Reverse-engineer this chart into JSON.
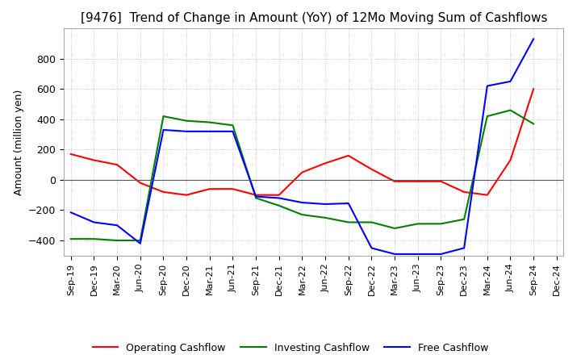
{
  "title": "[9476]  Trend of Change in Amount (YoY) of 12Mo Moving Sum of Cashflows",
  "ylabel": "Amount (million yen)",
  "ylim": [
    -500,
    1000
  ],
  "yticks": [
    -400,
    -200,
    0,
    200,
    400,
    600,
    800
  ],
  "x_labels": [
    "Sep-19",
    "Dec-19",
    "Mar-20",
    "Jun-20",
    "Sep-20",
    "Dec-20",
    "Mar-21",
    "Jun-21",
    "Sep-21",
    "Dec-21",
    "Mar-22",
    "Jun-22",
    "Sep-22",
    "Dec-22",
    "Mar-23",
    "Jun-23",
    "Sep-23",
    "Dec-23",
    "Mar-24",
    "Jun-24",
    "Sep-24",
    "Dec-24"
  ],
  "operating": [
    170,
    130,
    100,
    -20,
    -80,
    -100,
    -60,
    -60,
    -100,
    -100,
    50,
    110,
    160,
    70,
    -10,
    -10,
    -10,
    -80,
    -100,
    130,
    600,
    null
  ],
  "investing": [
    -390,
    -390,
    -400,
    -400,
    420,
    390,
    380,
    360,
    -120,
    -170,
    -230,
    -250,
    -280,
    -280,
    -320,
    -290,
    -290,
    -260,
    420,
    460,
    370,
    null
  ],
  "free": [
    -215,
    -280,
    -300,
    -420,
    330,
    320,
    320,
    320,
    -110,
    -120,
    -150,
    -160,
    -155,
    -450,
    -490,
    -490,
    -490,
    -450,
    620,
    650,
    930,
    null
  ],
  "line_colors": {
    "operating": "#ff0000",
    "investing": "#008000",
    "free": "#0000ff"
  },
  "legend": [
    "Operating Cashflow",
    "Investing Cashflow",
    "Free Cashflow"
  ],
  "background_color": "#ffffff",
  "grid_color": "#bbbbbb",
  "title_fontsize": 11,
  "label_fontsize": 9
}
